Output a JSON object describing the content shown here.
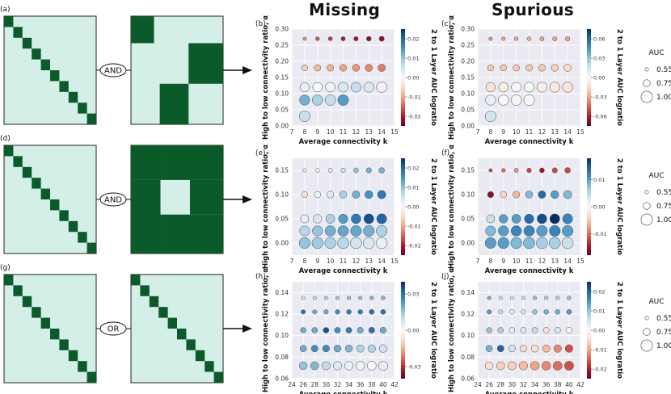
{
  "headers": {
    "missing": "Missing",
    "spurious": "Spurious"
  },
  "rows": [
    {
      "mat_label": "(a)",
      "op": "AND",
      "pattern": "block"
    },
    {
      "mat_label": "(d)",
      "op": "AND",
      "pattern": "inverse"
    },
    {
      "mat_label": "(g)",
      "op": "OR",
      "pattern": "identity"
    }
  ],
  "legend": {
    "title": "AUC",
    "items": [
      {
        "label": "0.55",
        "value": 0.55
      },
      {
        "label": "0.75",
        "value": 0.75
      },
      {
        "label": "1.00",
        "value": 1.0
      }
    ]
  },
  "chart_data": [
    {
      "id": "b",
      "panel": "(b)",
      "type": "scatter",
      "xlabel": "Average connectivity k",
      "ylabel": "High to low connectivity ratio, α",
      "cbar_label": "2 to 1 Layer AUC logratio",
      "xlim": [
        7,
        15
      ],
      "xticks": [
        7,
        8,
        9,
        10,
        11,
        12,
        13,
        14,
        15
      ],
      "yticks": [
        "0.00",
        "0.05",
        "0.10",
        "0.15",
        "0.20",
        "0.25",
        "0.30"
      ],
      "ylim": [
        0,
        0.3
      ],
      "cbar_ticks": [
        0.02,
        0.01,
        0.0,
        -0.01,
        -0.02
      ],
      "cbar_range": [
        -0.025,
        0.025
      ],
      "x": [
        8,
        9,
        10,
        11,
        12,
        13,
        14
      ],
      "series": [
        {
          "alpha": 0.27,
          "auc": [
            0.55,
            0.57,
            0.58,
            0.59,
            0.6,
            0.62,
            0.64
          ],
          "logratio": [
            -0.012,
            -0.016,
            -0.018,
            -0.02,
            -0.021,
            -0.022,
            -0.022
          ]
        },
        {
          "alpha": 0.18,
          "auc": [
            0.7,
            0.72,
            0.73,
            0.74,
            0.75,
            0.76,
            0.77
          ],
          "logratio": [
            -0.006,
            -0.008,
            -0.009,
            -0.01,
            -0.011,
            -0.012,
            -0.013
          ]
        },
        {
          "alpha": 0.12,
          "auc": [
            0.88,
            0.89,
            0.9,
            0.91,
            0.92,
            0.93,
            0.94
          ],
          "logratio": [
            0.002,
            0.0,
            0.001,
            0.004,
            0.006,
            0.004,
            0.001
          ]
        },
        {
          "alpha": 0.08,
          "auc": [
            0.93,
            0.94,
            0.95,
            0.96
          ],
          "logratio": [
            0.012,
            0.008,
            0.006,
            0.014
          ]
        },
        {
          "alpha": 0.03,
          "auc": [
            0.97
          ],
          "logratio": [
            0.006
          ]
        }
      ]
    },
    {
      "id": "c",
      "panel": "(c)",
      "type": "scatter",
      "xlabel": "Average connectivity k",
      "ylabel": "High to low connectivity ratio, α",
      "cbar_label": "2 to 1 Layer AUC logratio",
      "xlim": [
        7,
        15
      ],
      "xticks": [
        7,
        8,
        9,
        10,
        11,
        12,
        13,
        14,
        15
      ],
      "yticks": [
        "0.00",
        "0.05",
        "0.10",
        "0.15",
        "0.20",
        "0.25",
        "0.30"
      ],
      "ylim": [
        0,
        0.3
      ],
      "cbar_ticks": [
        0.06,
        0.03,
        0.0,
        -0.03,
        -0.06
      ],
      "cbar_range": [
        -0.075,
        0.075
      ],
      "x": [
        8,
        9,
        10,
        11,
        12,
        13,
        14
      ],
      "series": [
        {
          "alpha": 0.27,
          "auc": [
            0.55,
            0.56,
            0.57,
            0.58,
            0.59,
            0.6,
            0.61
          ],
          "logratio": [
            -0.035,
            -0.03,
            -0.03,
            -0.028,
            -0.03,
            -0.03,
            -0.03
          ]
        },
        {
          "alpha": 0.18,
          "auc": [
            0.7,
            0.71,
            0.72,
            0.73,
            0.74,
            0.75,
            0.76
          ],
          "logratio": [
            -0.02,
            -0.02,
            -0.02,
            -0.02,
            -0.02,
            -0.018,
            -0.015
          ]
        },
        {
          "alpha": 0.12,
          "auc": [
            0.88,
            0.89,
            0.9,
            0.91,
            0.92,
            0.93,
            0.94
          ],
          "logratio": [
            -0.01,
            -0.005,
            0.0,
            0.0,
            -0.005,
            -0.008,
            -0.01
          ]
        },
        {
          "alpha": 0.08,
          "auc": [
            0.93,
            0.94,
            0.95,
            0.96
          ],
          "logratio": [
            0.005,
            0.0,
            -0.002,
            0.0
          ]
        },
        {
          "alpha": 0.03,
          "auc": [
            0.97
          ],
          "logratio": [
            0.015
          ]
        }
      ]
    },
    {
      "id": "e",
      "panel": "(e)",
      "type": "scatter",
      "xlabel": "Average connectivity k",
      "ylabel": "High to low connectivity ratio, α",
      "cbar_label": "2 to 1 Layer AUC logratio",
      "xlim": [
        7,
        15
      ],
      "xticks": [
        7,
        8,
        9,
        10,
        11,
        12,
        13,
        14,
        15
      ],
      "yticks": [
        "0.00",
        "0.05",
        "0.10",
        "0.15"
      ],
      "ylim": [
        -0.025,
        0.175
      ],
      "cbar_ticks": [
        0.02,
        0.01,
        0.0,
        -0.01,
        -0.02
      ],
      "cbar_range": [
        -0.025,
        0.025
      ],
      "x": [
        8,
        9,
        10,
        11,
        12,
        13,
        14
      ],
      "series": [
        {
          "alpha": 0.15,
          "auc": [
            0.55,
            0.57,
            0.59,
            0.61,
            0.63,
            0.65,
            0.67
          ],
          "logratio": [
            0.002,
            0.0,
            0.003,
            0.005,
            0.01,
            0.012,
            0.012
          ]
        },
        {
          "alpha": 0.1,
          "auc": [
            0.7,
            0.72,
            0.74,
            0.76,
            0.78,
            0.8,
            0.82
          ],
          "logratio": [
            -0.004,
            0.001,
            0.003,
            0.008,
            0.012,
            0.015,
            0.018
          ]
        },
        {
          "alpha": 0.05,
          "auc": [
            0.82,
            0.84,
            0.86,
            0.88,
            0.9,
            0.91,
            0.92
          ],
          "logratio": [
            0.002,
            0.004,
            0.008,
            0.014,
            0.018,
            0.022,
            0.02
          ]
        },
        {
          "alpha": 0.025,
          "auc": [
            0.92,
            0.93,
            0.94,
            0.95,
            0.96,
            0.97,
            0.97
          ],
          "logratio": [
            0.007,
            0.01,
            0.012,
            0.013,
            0.013,
            0.012,
            0.008
          ]
        },
        {
          "alpha": 0.0,
          "auc": [
            0.97,
            0.98,
            0.98,
            0.99,
            0.99,
            0.99,
            0.99
          ],
          "logratio": [
            0.01,
            0.009,
            0.008,
            0.007,
            0.005,
            0.004,
            0.002
          ]
        }
      ]
    },
    {
      "id": "f",
      "panel": "(f)",
      "type": "scatter",
      "xlabel": "Average connectivity k",
      "ylabel": "High to low connectivity ratio, α",
      "cbar_label": "2 to 1 Layer AUC logratio",
      "xlim": [
        7,
        15
      ],
      "xticks": [
        7,
        8,
        9,
        10,
        11,
        12,
        13,
        14,
        15
      ],
      "yticks": [
        "0.00",
        "0.05",
        "0.10",
        "0.15"
      ],
      "ylim": [
        -0.025,
        0.175
      ],
      "cbar_ticks": [
        0.01,
        0.0,
        -0.01
      ],
      "cbar_range": [
        -0.018,
        0.018
      ],
      "x": [
        8,
        9,
        10,
        11,
        12,
        13,
        14
      ],
      "series": [
        {
          "alpha": 0.15,
          "auc": [
            0.55,
            0.57,
            0.59,
            0.61,
            0.63,
            0.65,
            0.67
          ],
          "logratio": [
            -0.012,
            -0.01,
            -0.008,
            -0.012,
            -0.015,
            -0.012,
            -0.012
          ]
        },
        {
          "alpha": 0.1,
          "auc": [
            0.7,
            0.72,
            0.74,
            0.76,
            0.78,
            0.8,
            0.82
          ],
          "logratio": [
            -0.016,
            -0.004,
            -0.006,
            0.008,
            0.014,
            0.01,
            0.008
          ]
        },
        {
          "alpha": 0.05,
          "auc": [
            0.82,
            0.84,
            0.86,
            0.88,
            0.9,
            0.91,
            0.92
          ],
          "logratio": [
            0.004,
            0.01,
            0.01,
            0.014,
            0.016,
            0.018,
            0.012
          ]
        },
        {
          "alpha": 0.025,
          "auc": [
            0.92,
            0.93,
            0.94,
            0.95,
            0.96,
            0.97,
            0.97
          ],
          "logratio": [
            0.008,
            0.01,
            0.012,
            0.012,
            0.01,
            0.012,
            0.01
          ]
        },
        {
          "alpha": 0.0,
          "auc": [
            0.97,
            0.98,
            0.98,
            0.99,
            0.99,
            0.99,
            0.99
          ],
          "logratio": [
            0.01,
            0.01,
            0.008,
            0.008,
            0.006,
            0.006,
            0.004
          ]
        }
      ]
    },
    {
      "id": "h",
      "panel": "(h)",
      "type": "scatter",
      "xlabel": "Average connectivity k",
      "ylabel": "High to low connectivity ratio, α",
      "cbar_label": "2 to 1 Layer AUC logratio",
      "xlim": [
        24,
        42
      ],
      "xticks": [
        24,
        26,
        28,
        30,
        32,
        34,
        36,
        38,
        40,
        42
      ],
      "yticks": [
        "0.06",
        "0.08",
        "0.10",
        "0.12",
        "0.14"
      ],
      "ylim": [
        0.06,
        0.15
      ],
      "cbar_ticks": [
        0.03,
        0.0,
        -0.03
      ],
      "cbar_range": [
        -0.04,
        0.04
      ],
      "x": [
        26,
        28,
        30,
        32,
        34,
        36,
        38,
        40
      ],
      "series": [
        {
          "alpha": 0.135,
          "auc": [
            0.55,
            0.55,
            0.55,
            0.55,
            0.56,
            0.56,
            0.56,
            0.57
          ],
          "logratio": [
            0.006,
            0.01,
            0.012,
            0.014,
            0.016,
            0.016,
            0.018,
            0.018
          ]
        },
        {
          "alpha": 0.122,
          "auc": [
            0.6,
            0.6,
            0.61,
            0.61,
            0.62,
            0.62,
            0.63,
            0.63
          ],
          "logratio": [
            0.03,
            0.02,
            0.02,
            0.025,
            0.028,
            0.028,
            0.03,
            0.03
          ]
        },
        {
          "alpha": 0.105,
          "auc": [
            0.66,
            0.67,
            0.67,
            0.68,
            0.68,
            0.69,
            0.69,
            0.7
          ],
          "logratio": [
            0.02,
            0.02,
            0.035,
            0.025,
            0.028,
            0.02,
            0.03,
            0.02
          ]
        },
        {
          "alpha": 0.088,
          "auc": [
            0.72,
            0.73,
            0.74,
            0.75,
            0.76,
            0.77,
            0.78,
            0.79
          ],
          "logratio": [
            0.02,
            0.025,
            0.026,
            0.02,
            0.018,
            0.012,
            0.012,
            0.008
          ]
        },
        {
          "alpha": 0.072,
          "auc": [
            0.8,
            0.81,
            0.82,
            0.83,
            0.84,
            0.85,
            0.86,
            0.87
          ],
          "logratio": [
            0.016,
            0.018,
            0.01,
            0.006,
            0.003,
            0.002,
            0.0,
            0.004
          ]
        }
      ]
    },
    {
      "id": "j",
      "panel": "(j)",
      "type": "scatter",
      "xlabel": "Average connectivity k",
      "ylabel": "High to low connectivity ratio, α",
      "cbar_label": "2 to 1 Layer AUC logratio",
      "xlim": [
        24,
        42
      ],
      "xticks": [
        24,
        26,
        28,
        30,
        32,
        34,
        36,
        38,
        40,
        42
      ],
      "yticks": [
        "0.06",
        "0.08",
        "0.10",
        "0.12",
        "0.14"
      ],
      "ylim": [
        0.06,
        0.15
      ],
      "cbar_ticks": [
        0.02,
        0.01,
        0.0,
        -0.01,
        -0.02
      ],
      "cbar_range": [
        -0.025,
        0.025
      ],
      "x": [
        26,
        28,
        30,
        32,
        34,
        36,
        38,
        40
      ],
      "series": [
        {
          "alpha": 0.135,
          "auc": [
            0.55,
            0.55,
            0.55,
            0.55,
            0.56,
            0.56,
            0.56,
            0.57
          ],
          "logratio": [
            0.012,
            0.006,
            0.004,
            0.006,
            0.01,
            0.008,
            0.008,
            0.01
          ]
        },
        {
          "alpha": 0.122,
          "auc": [
            0.6,
            0.6,
            0.61,
            0.61,
            0.62,
            0.62,
            0.63,
            0.63
          ],
          "logratio": [
            0.014,
            0.006,
            0.002,
            0.004,
            0.01,
            0.012,
            0.012,
            0.014
          ]
        },
        {
          "alpha": 0.105,
          "auc": [
            0.66,
            0.67,
            0.67,
            0.68,
            0.68,
            0.69,
            0.69,
            0.7
          ],
          "logratio": [
            0.01,
            0.008,
            0.002,
            0.004,
            0.006,
            -0.004,
            0.004,
            0.0
          ]
        },
        {
          "alpha": 0.088,
          "auc": [
            0.72,
            0.73,
            0.74,
            0.75,
            0.76,
            0.77,
            0.78,
            0.79
          ],
          "logratio": [
            0.012,
            0.02,
            0.005,
            -0.005,
            -0.004,
            -0.008,
            -0.012,
            -0.016
          ]
        },
        {
          "alpha": 0.072,
          "auc": [
            0.8,
            0.81,
            0.82,
            0.83,
            0.84,
            0.85,
            0.86,
            0.87
          ],
          "logratio": [
            -0.004,
            -0.006,
            -0.006,
            -0.008,
            -0.01,
            -0.012,
            -0.014,
            -0.016
          ]
        }
      ]
    }
  ]
}
